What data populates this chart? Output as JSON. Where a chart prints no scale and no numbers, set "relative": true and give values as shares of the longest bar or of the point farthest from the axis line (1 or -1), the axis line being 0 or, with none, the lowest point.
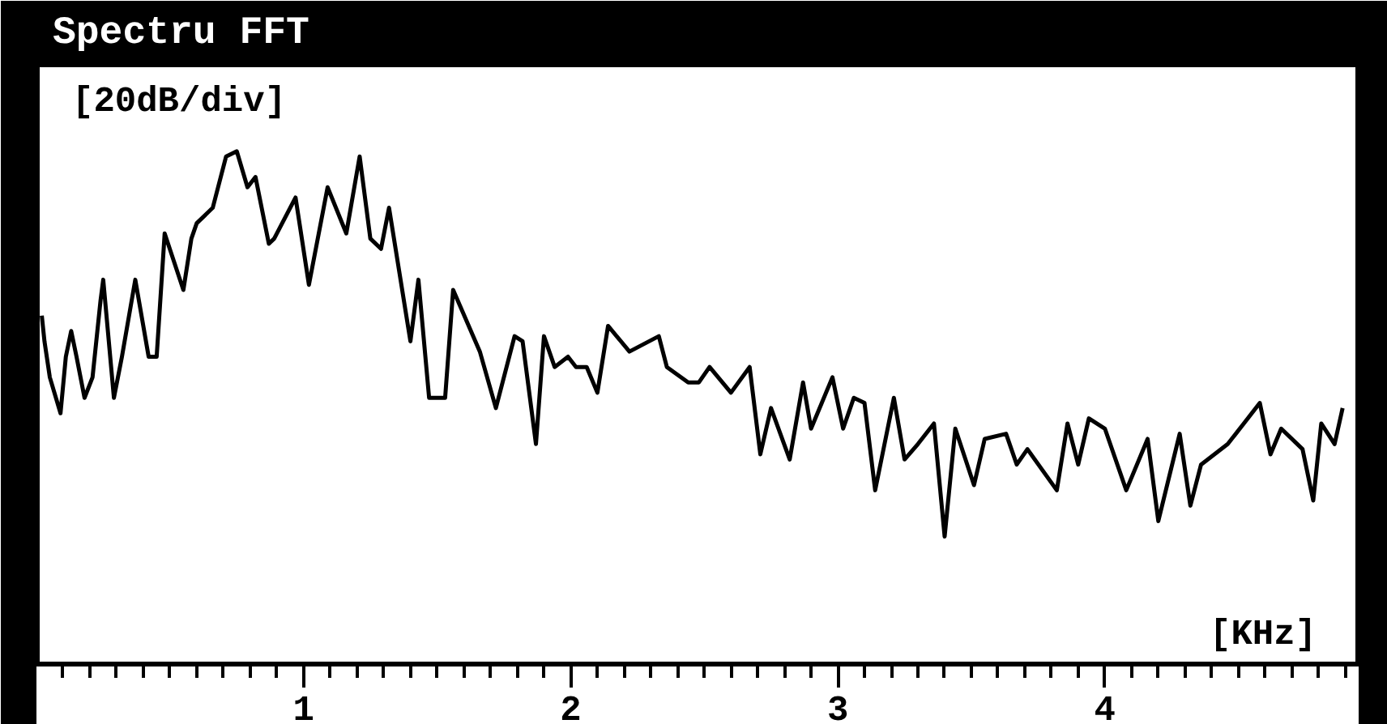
{
  "chart_data": {
    "type": "line",
    "title": "Spectru FFT",
    "xlabel": "[KHz]",
    "annotations": [
      "[20dB/div]"
    ],
    "relative": true,
    "grid": false,
    "marker": "none",
    "line_style": "solid",
    "xlim": [
      0,
      4.95
    ],
    "xticks": [
      1,
      2,
      3,
      4
    ],
    "x": [
      0.02,
      0.03,
      0.05,
      0.09,
      0.11,
      0.13,
      0.15,
      0.18,
      0.21,
      0.24,
      0.25,
      0.29,
      0.32,
      0.37,
      0.42,
      0.45,
      0.48,
      0.55,
      0.58,
      0.6,
      0.66,
      0.71,
      0.75,
      0.79,
      0.82,
      0.87,
      0.89,
      0.97,
      1.02,
      1.09,
      1.16,
      1.21,
      1.25,
      1.29,
      1.32,
      1.4,
      1.43,
      1.47,
      1.53,
      1.56,
      1.66,
      1.72,
      1.79,
      1.82,
      1.87,
      1.9,
      1.94,
      1.99,
      2.02,
      2.06,
      2.1,
      2.14,
      2.22,
      2.33,
      2.36,
      2.44,
      2.48,
      2.52,
      2.6,
      2.67,
      2.71,
      2.75,
      2.82,
      2.87,
      2.9,
      2.98,
      3.02,
      3.06,
      3.1,
      3.14,
      3.21,
      3.25,
      3.3,
      3.36,
      3.4,
      3.44,
      3.51,
      3.55,
      3.63,
      3.67,
      3.71,
      3.82,
      3.86,
      3.9,
      3.94,
      4.0,
      4.08,
      4.16,
      4.2,
      4.28,
      4.32,
      4.36,
      4.46,
      4.52,
      4.58,
      4.62,
      4.66,
      4.74,
      4.78,
      4.81,
      4.86,
      4.89
    ],
    "series": [
      {
        "color": "#000000",
        "values": [
          0.68,
          0.63,
          0.56,
          0.49,
          0.6,
          0.65,
          0.6,
          0.52,
          0.56,
          0.71,
          0.75,
          0.52,
          0.6,
          0.75,
          0.6,
          0.6,
          0.84,
          0.73,
          0.83,
          0.86,
          0.89,
          0.99,
          1.0,
          0.93,
          0.95,
          0.82,
          0.83,
          0.91,
          0.74,
          0.93,
          0.84,
          0.99,
          0.83,
          0.81,
          0.89,
          0.63,
          0.75,
          0.52,
          0.52,
          0.73,
          0.61,
          0.5,
          0.64,
          0.63,
          0.43,
          0.64,
          0.58,
          0.6,
          0.58,
          0.58,
          0.53,
          0.66,
          0.61,
          0.64,
          0.58,
          0.55,
          0.55,
          0.58,
          0.53,
          0.58,
          0.41,
          0.5,
          0.4,
          0.55,
          0.46,
          0.56,
          0.46,
          0.52,
          0.51,
          0.34,
          0.52,
          0.4,
          0.43,
          0.47,
          0.25,
          0.46,
          0.35,
          0.44,
          0.45,
          0.39,
          0.42,
          0.34,
          0.47,
          0.39,
          0.48,
          0.46,
          0.34,
          0.44,
          0.28,
          0.45,
          0.31,
          0.39,
          0.43,
          0.47,
          0.51,
          0.41,
          0.46,
          0.42,
          0.32,
          0.47,
          0.43,
          0.5
        ]
      }
    ]
  }
}
